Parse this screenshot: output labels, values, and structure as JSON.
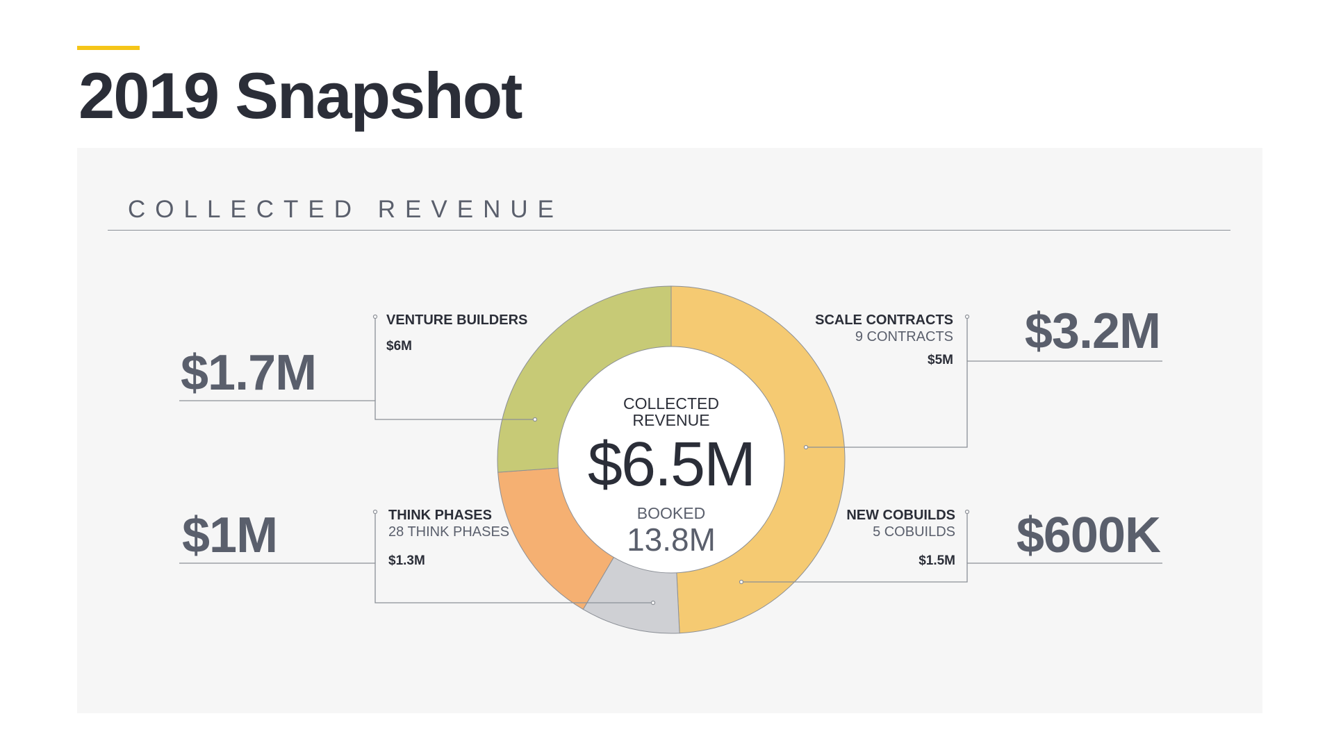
{
  "header": {
    "title": "2019 Snapshot",
    "accent_color": "#f5c518"
  },
  "section": {
    "heading": "COLLECTED REVENUE"
  },
  "chart_data": {
    "type": "pie",
    "donut": true,
    "center": {
      "label": "COLLECTED\nREVENUE",
      "value": "$6.5M",
      "booked_label": "BOOKED",
      "booked_value": "13.8M"
    },
    "segments": [
      {
        "name": "SCALE CONTRACTS",
        "detail": "9 CONTRACTS",
        "collected": "$3.2M",
        "collected_value": 3.2,
        "booked": "$5M",
        "color": "#f5ca72"
      },
      {
        "name": "NEW COBUILDS",
        "detail": "5 COBUILDS",
        "collected": "$600K",
        "collected_value": 0.6,
        "booked": "$1.5M",
        "color": "#cfd0d4"
      },
      {
        "name": "THINK PHASES",
        "detail": "28 THINK PHASES",
        "collected": "$1M",
        "collected_value": 1.0,
        "booked": "$1.3M",
        "color": "#f5b072"
      },
      {
        "name": "VENTURE BUILDERS",
        "detail": "",
        "collected": "$1.7M",
        "collected_value": 1.7,
        "booked": "$6M",
        "color": "#c7ca76"
      }
    ]
  }
}
